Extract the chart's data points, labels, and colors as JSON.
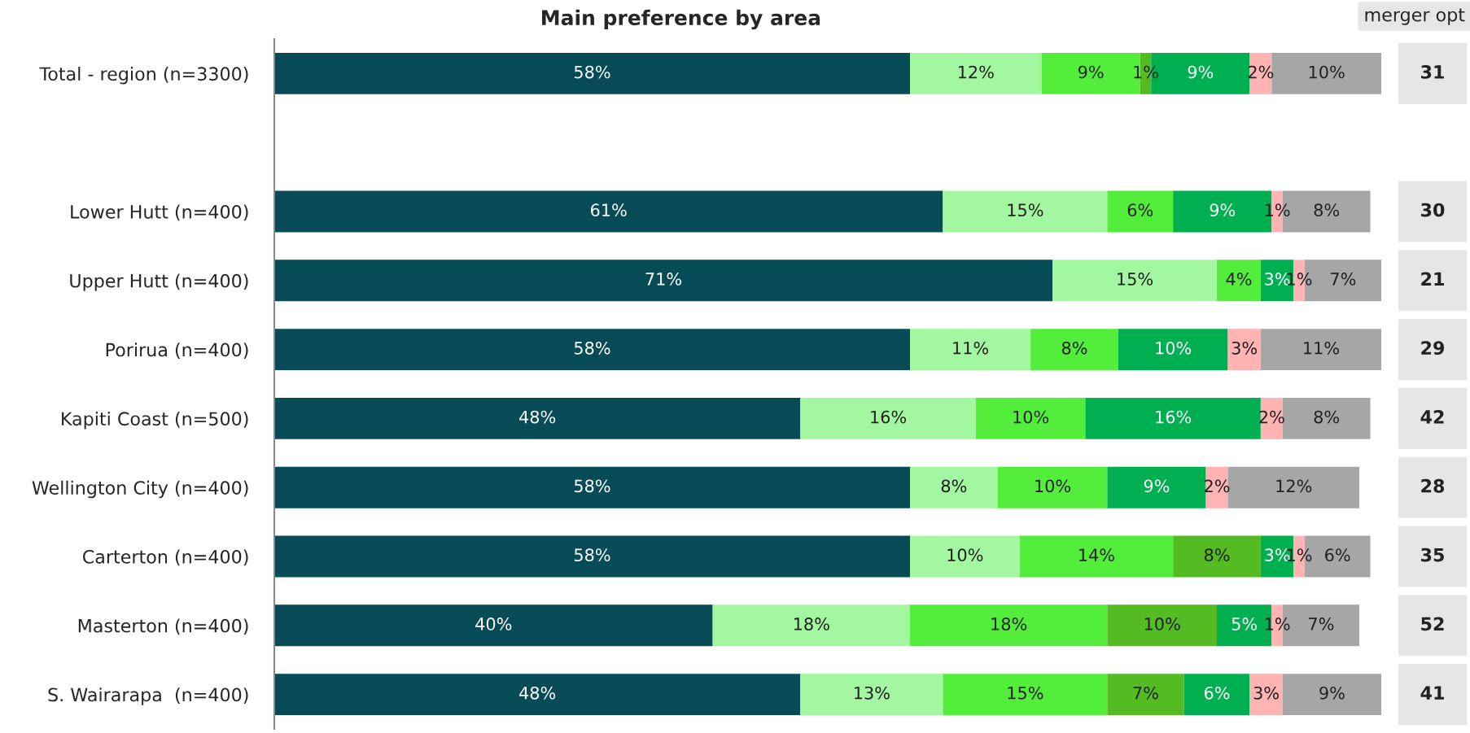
{
  "chart_data": [
    {
      "type": "bar",
      "orientation": "horizontal",
      "stacked": true,
      "title": "Main preference by area",
      "tick_labels": "y",
      "grid": false,
      "legend": false,
      "categories": [
        "Total - region (n=3300)",
        null,
        "Lower Hutt (n=400)",
        "Upper Hutt (n=400)",
        "Porirua (n=400)",
        "Kapiti Coast (n=500)",
        "Wellington City (n=400)",
        "Carterton (n=400)",
        "Masterton (n=400)",
        "S. Wairarapa  (n=400)"
      ],
      "annotations": [
        "merger opt",
        "31",
        "30",
        "21",
        "29",
        "42",
        "28",
        "35",
        "52",
        "41"
      ],
      "series": [
        {
          "color": "#074b57",
          "values": [
            58,
            null,
            61,
            71,
            58,
            48,
            58,
            58,
            40,
            48
          ],
          "value_labels": [
            "58%",
            null,
            "61%",
            "71%",
            "58%",
            "48%",
            "58%",
            "58%",
            "40%",
            "48%"
          ]
        },
        {
          "color": "#a3f7a0",
          "values": [
            12,
            null,
            15,
            15,
            11,
            16,
            8,
            10,
            18,
            13
          ],
          "value_labels": [
            "12%",
            null,
            "15%",
            "15%",
            "11%",
            "16%",
            "8%",
            "10%",
            "18%",
            "13%"
          ]
        },
        {
          "color": "#52ee3b",
          "values": [
            9,
            null,
            6,
            4,
            8,
            10,
            10,
            14,
            18,
            15
          ],
          "value_labels": [
            "9%",
            null,
            "6%",
            "4%",
            "8%",
            "10%",
            "10%",
            "14%",
            "18%",
            "15%"
          ]
        },
        {
          "color": "#55bb22",
          "values": [
            1,
            null,
            null,
            null,
            null,
            null,
            null,
            8,
            10,
            7
          ],
          "value_labels": [
            "1%",
            null,
            null,
            null,
            null,
            null,
            null,
            "8%",
            "10%",
            "7%"
          ]
        },
        {
          "color": "#00b050",
          "values": [
            9,
            null,
            9,
            3,
            10,
            16,
            9,
            3,
            5,
            6
          ],
          "value_labels": [
            "9%",
            null,
            "9%",
            "3%",
            "10%",
            "16%",
            "9%",
            "3%",
            "5%",
            "6%"
          ]
        },
        {
          "color": "#ffb3b3",
          "values": [
            2,
            null,
            1,
            1,
            3,
            2,
            2,
            1,
            1,
            3
          ],
          "value_labels": [
            "2%",
            null,
            "1%",
            "1%",
            "3%",
            "2%",
            "2%",
            "1%",
            "1%",
            "3%"
          ]
        },
        {
          "color": "#a6a6a6",
          "values": [
            10,
            null,
            8,
            7,
            11,
            8,
            12,
            6,
            7,
            9
          ],
          "value_labels": [
            "10%",
            null,
            "8%",
            "7%",
            "11%",
            "8%",
            "12%",
            "6%",
            "7%",
            "9%"
          ]
        }
      ]
    }
  ]
}
